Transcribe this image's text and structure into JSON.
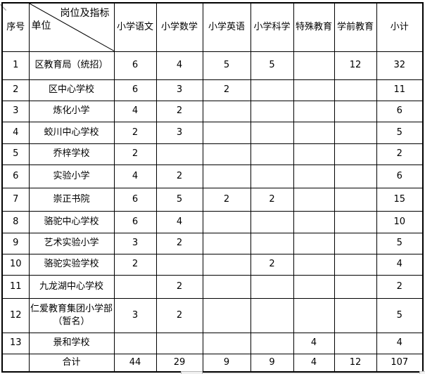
{
  "table": {
    "corner": {
      "serial_label": "序号",
      "top_label": "岗位及指标",
      "bottom_label": "单位"
    },
    "subject_columns": [
      "小学语文",
      "小学数学",
      "小学英语",
      "小学科学",
      "特殊教育",
      "学前教育",
      "小计"
    ],
    "rows": [
      {
        "no": "1",
        "unit": "区教育局（统招）",
        "values": [
          "6",
          "4",
          "5",
          "5",
          "",
          "12",
          "32"
        ]
      },
      {
        "no": "2",
        "unit": "区中心学校",
        "values": [
          "6",
          "3",
          "2",
          "",
          "",
          "",
          "11"
        ]
      },
      {
        "no": "3",
        "unit": "炼化小学",
        "values": [
          "4",
          "2",
          "",
          "",
          "",
          "",
          "6"
        ]
      },
      {
        "no": "4",
        "unit": "蛟川中心学校",
        "values": [
          "2",
          "3",
          "",
          "",
          "",
          "",
          "5"
        ]
      },
      {
        "no": "5",
        "unit": "乔梓学校",
        "values": [
          "2",
          "",
          "",
          "",
          "",
          "",
          "2"
        ]
      },
      {
        "no": "6",
        "unit": "实验小学",
        "values": [
          "4",
          "2",
          "",
          "",
          "",
          "",
          "6"
        ]
      },
      {
        "no": "7",
        "unit": "崇正书院",
        "values": [
          "6",
          "5",
          "2",
          "2",
          "",
          "",
          "15"
        ]
      },
      {
        "no": "8",
        "unit": "骆驼中心学校",
        "values": [
          "6",
          "4",
          "",
          "",
          "",
          "",
          "10"
        ]
      },
      {
        "no": "9",
        "unit": "艺术实验小学",
        "values": [
          "3",
          "2",
          "",
          "",
          "",
          "",
          "5"
        ]
      },
      {
        "no": "10",
        "unit": "骆驼实验学校",
        "values": [
          "2",
          "",
          "",
          "2",
          "",
          "",
          "4"
        ]
      },
      {
        "no": "11",
        "unit": "九龙湖中心学校",
        "values": [
          "",
          "2",
          "",
          "",
          "",
          "",
          "2"
        ]
      },
      {
        "no": "12",
        "unit": "仁爱教育集团小学部（暂名）",
        "values": [
          "3",
          "2",
          "",
          "",
          "",
          "",
          "5"
        ]
      },
      {
        "no": "13",
        "unit": "景和学校",
        "values": [
          "",
          "",
          "",
          "",
          "4",
          "",
          "4"
        ]
      }
    ],
    "total_row": {
      "no": "",
      "unit": "合计",
      "values": [
        "44",
        "29",
        "9",
        "9",
        "4",
        "12",
        "107"
      ]
    }
  },
  "colors": {
    "border": "#000000",
    "text": "#000000",
    "background": "#ffffff"
  }
}
